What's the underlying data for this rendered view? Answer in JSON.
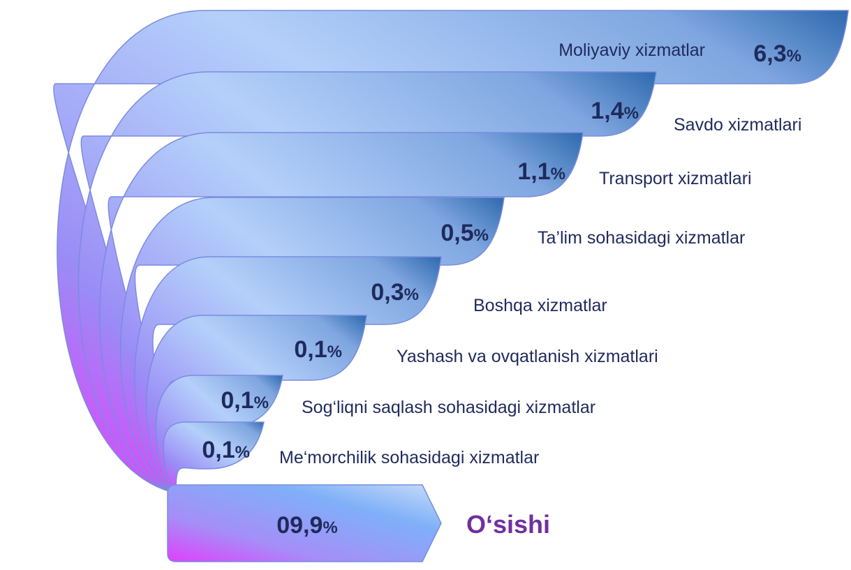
{
  "items": [
    {
      "label": "Moliyaviy xizmatlar",
      "value": "6,3"
    },
    {
      "label": "Savdo xizmatlari",
      "value": "1,4"
    },
    {
      "label": "Transport xizmatlari",
      "value": "1,1"
    },
    {
      "label": "Ta’lim sohasidagi xizmatlar",
      "value": "0,5"
    },
    {
      "label": "Boshqa xizmatlar",
      "value": "0,3"
    },
    {
      "label": "Yashash va ovqatlanish xizmatlari",
      "value": "0,1"
    },
    {
      "label": "Sog‘liqni saqlash sohasidagi xizmatlar",
      "value": "0,1"
    },
    {
      "label": "Me‘morchilik sohasidagi xizmatlar",
      "value": "0,1"
    }
  ],
  "unit": "%",
  "total": {
    "value": "09,9",
    "label": "O‘sishi"
  }
}
